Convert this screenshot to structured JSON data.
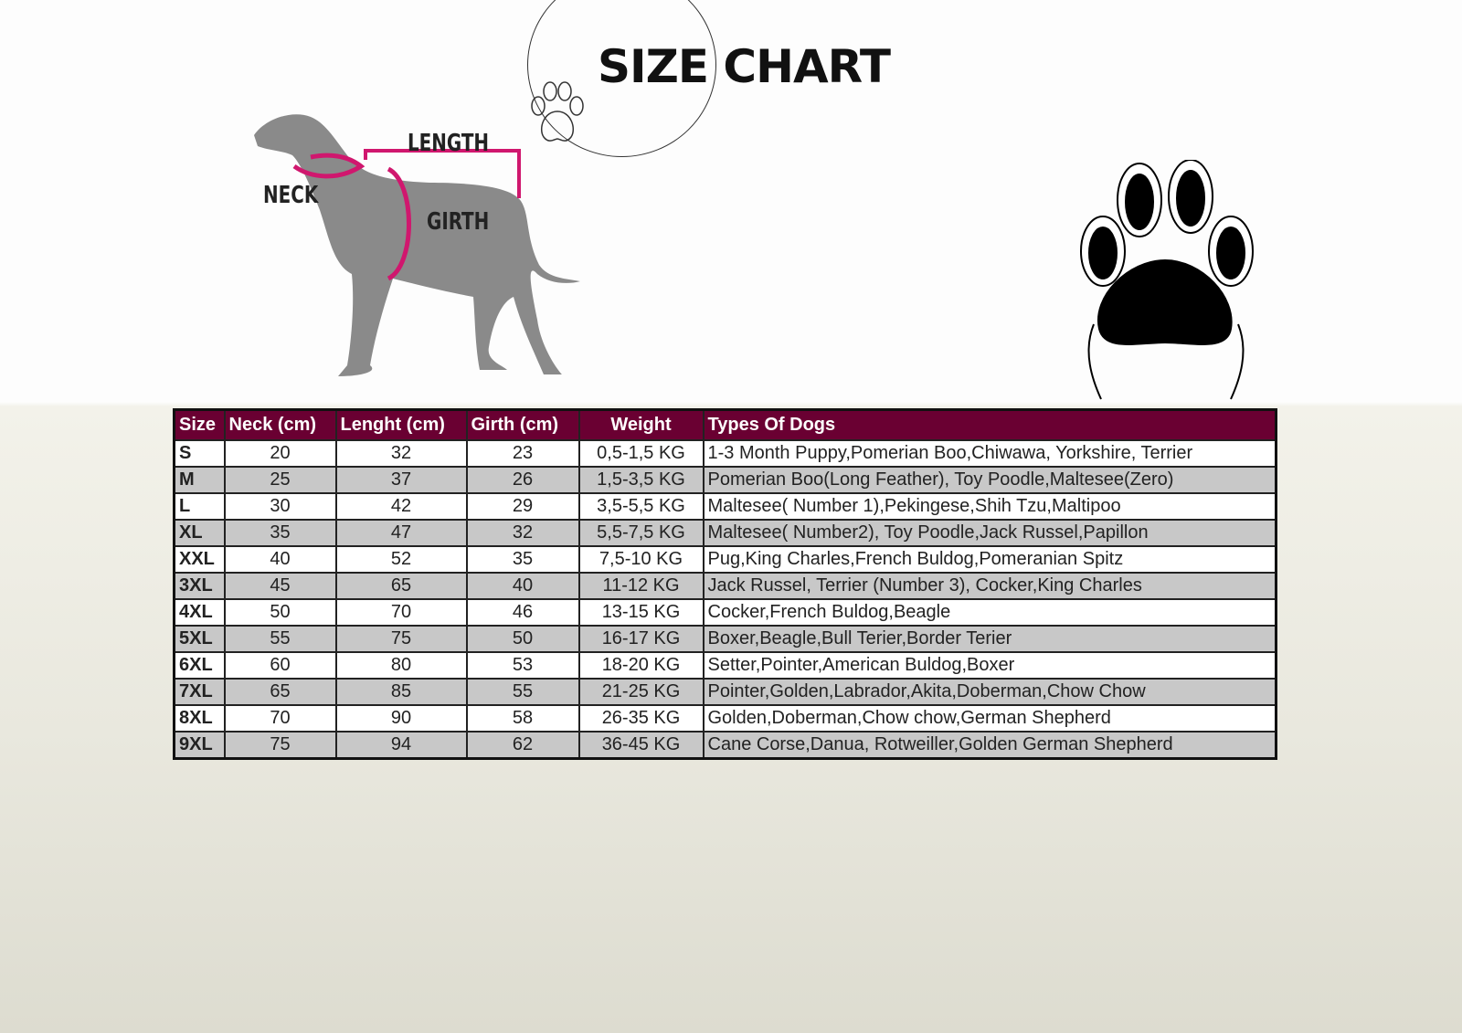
{
  "title": "SIZE CHART",
  "diagram_labels": {
    "neck": "NECK",
    "length": "LENGTH",
    "girth": "GIRTH"
  },
  "colors": {
    "header": "#6a0032",
    "measure_lines": "#d0176e",
    "alt_row": "#c8c8c8"
  },
  "table": {
    "headers": [
      "Size",
      "Neck (cm)",
      "Lenght (cm)",
      "Girth (cm)",
      "Weight",
      "Types Of Dogs"
    ],
    "rows": [
      [
        "S",
        "20",
        "32",
        "23",
        "0,5-1,5 KG",
        "1-3 Month Puppy,Pomerian Boo,Chiwawa, Yorkshire, Terrier"
      ],
      [
        "M",
        "25",
        "37",
        "26",
        "1,5-3,5 KG",
        "Pomerian Boo(Long Feather), Toy Poodle,Maltesee(Zero)"
      ],
      [
        "L",
        "30",
        "42",
        "29",
        "3,5-5,5 KG",
        "Maltesee( Number 1),Pekingese,Shih Tzu,Maltipoo"
      ],
      [
        "XL",
        "35",
        "47",
        "32",
        "5,5-7,5 KG",
        "Maltesee( Number2), Toy Poodle,Jack Russel,Papillon"
      ],
      [
        "XXL",
        "40",
        "52",
        "35",
        "7,5-10 KG",
        "Pug,King Charles,French Buldog,Pomeranian Spitz"
      ],
      [
        "3XL",
        "45",
        "65",
        "40",
        "11-12 KG",
        "Jack Russel, Terrier (Number 3), Cocker,King Charles"
      ],
      [
        "4XL",
        "50",
        "70",
        "46",
        "13-15 KG",
        "Cocker,French Buldog,Beagle"
      ],
      [
        "5XL",
        "55",
        "75",
        "50",
        "16-17 KG",
        "Boxer,Beagle,Bull Terier,Border Terier"
      ],
      [
        "6XL",
        "60",
        "80",
        "53",
        "18-20 KG",
        "Setter,Pointer,American Buldog,Boxer"
      ],
      [
        "7XL",
        "65",
        "85",
        "55",
        "21-25 KG",
        "Pointer,Golden,Labrador,Akita,Doberman,Chow Chow"
      ],
      [
        "8XL",
        "70",
        "90",
        "58",
        "26-35 KG",
        "Golden,Doberman,Chow chow,German Shepherd"
      ],
      [
        "9XL",
        "75",
        "94",
        "62",
        "36-45 KG",
        "Cane Corse,Danua, Rotweiller,Golden German Shepherd"
      ]
    ]
  }
}
